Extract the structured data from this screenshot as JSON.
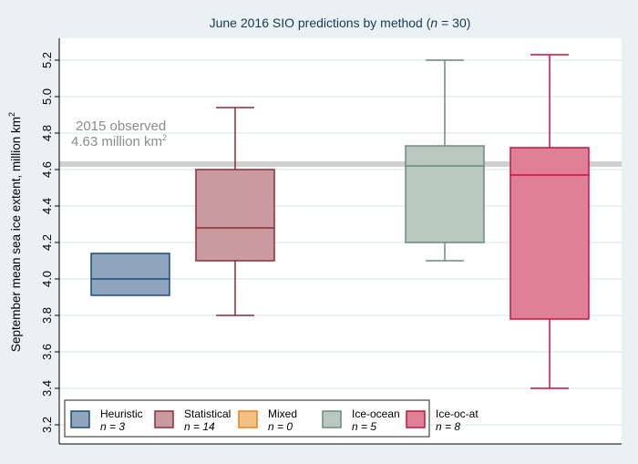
{
  "chart_data": {
    "type": "box",
    "title_prefix": "June 2016 SIO predictions by method (",
    "title_n": "n",
    "title_suffix": " = 30)",
    "ylabel": "September mean sea ice extent, million km",
    "ylabel_sup": "2",
    "ylim": [
      3.1,
      5.33
    ],
    "yticks": [
      "3.2",
      "3.4",
      "3.6",
      "3.8",
      "4.0",
      "4.2",
      "4.4",
      "4.6",
      "4.8",
      "5.0",
      "5.2"
    ],
    "grid": true,
    "reference": {
      "value": 4.63,
      "label1": "2015 observed",
      "label2": "4.63 million km",
      "sup": "2"
    },
    "series": [
      {
        "name": "Heuristic",
        "n": "n = 3",
        "fill": "#8fa5bd",
        "stroke": "#1f4b7a",
        "box": {
          "min": 3.91,
          "q1": 3.91,
          "median": 4.0,
          "q3": 4.14,
          "max": 4.14
        }
      },
      {
        "name": "Statistical",
        "n": "n = 14",
        "fill": "#c99b9e",
        "stroke": "#8e2c3a",
        "box": {
          "min": 3.8,
          "q1": 4.1,
          "median": 4.28,
          "q3": 4.6,
          "max": 4.94
        }
      },
      {
        "name": "Mixed",
        "n": "n = 0",
        "fill": "#f1c083",
        "stroke": "#e8821e",
        "box": null
      },
      {
        "name": "Ice-ocean",
        "n": "n = 5",
        "fill": "#b8c8c0",
        "stroke": "#6b8a7c",
        "box": {
          "min": 4.1,
          "q1": 4.2,
          "median": 4.62,
          "q3": 4.73,
          "max": 5.2
        }
      },
      {
        "name": "Ice-oc-at",
        "n": "n = 8",
        "fill": "#e08097",
        "stroke": "#c8133f",
        "box": {
          "min": 3.4,
          "q1": 3.78,
          "median": 4.57,
          "q3": 4.72,
          "max": 5.23
        }
      }
    ],
    "legend_position": "bottom-inside"
  }
}
